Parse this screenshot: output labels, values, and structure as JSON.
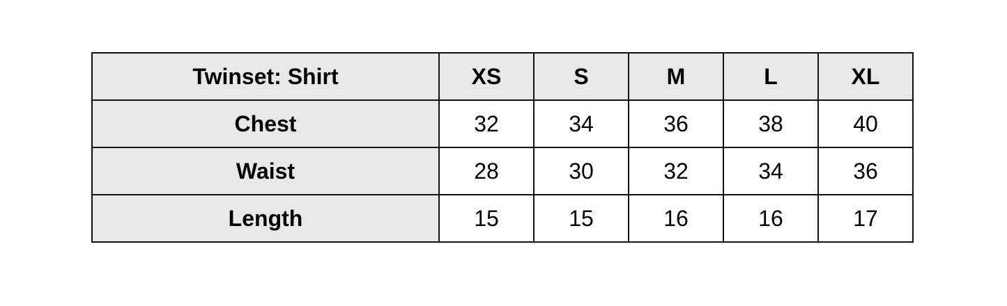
{
  "table": {
    "title": "Twinset: Shirt",
    "sizes": [
      "XS",
      "S",
      "M",
      "L",
      "XL"
    ],
    "rows": [
      {
        "label": "Chest",
        "values": [
          "32",
          "34",
          "36",
          "38",
          "40"
        ]
      },
      {
        "label": "Waist",
        "values": [
          "28",
          "30",
          "32",
          "34",
          "36"
        ]
      },
      {
        "label": "Length",
        "values": [
          "15",
          "15",
          "16",
          "16",
          "17"
        ]
      }
    ]
  }
}
